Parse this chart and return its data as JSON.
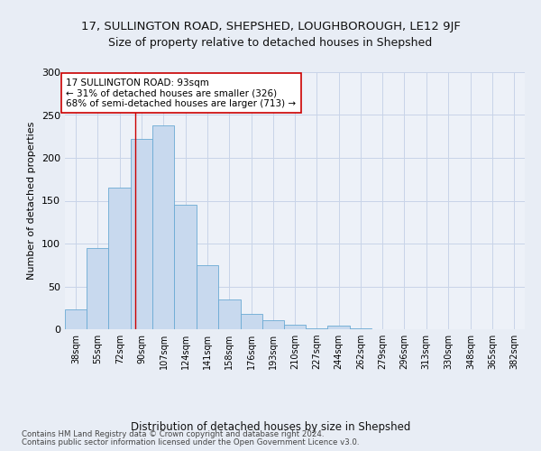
{
  "title": "17, SULLINGTON ROAD, SHEPSHED, LOUGHBOROUGH, LE12 9JF",
  "subtitle": "Size of property relative to detached houses in Shepshed",
  "xlabel": "Distribution of detached houses by size in Shepshed",
  "ylabel": "Number of detached properties",
  "footer_line1": "Contains HM Land Registry data © Crown copyright and database right 2024.",
  "footer_line2": "Contains public sector information licensed under the Open Government Licence v3.0.",
  "bar_labels": [
    "38sqm",
    "55sqm",
    "72sqm",
    "90sqm",
    "107sqm",
    "124sqm",
    "141sqm",
    "158sqm",
    "176sqm",
    "193sqm",
    "210sqm",
    "227sqm",
    "244sqm",
    "262sqm",
    "279sqm",
    "296sqm",
    "313sqm",
    "330sqm",
    "348sqm",
    "365sqm",
    "382sqm"
  ],
  "bar_heights": [
    23,
    95,
    165,
    222,
    238,
    145,
    75,
    35,
    18,
    11,
    5,
    1,
    4,
    1,
    0,
    0,
    0,
    0,
    0,
    0,
    0
  ],
  "bin_edges": [
    38,
    55,
    72,
    90,
    107,
    124,
    141,
    158,
    176,
    193,
    210,
    227,
    244,
    262,
    279,
    296,
    313,
    330,
    348,
    365,
    382,
    399
  ],
  "bar_color": "#c8d9ee",
  "bar_edge_color": "#6aaad4",
  "property_line_x": 93,
  "property_line_color": "#cc0000",
  "annotation_text": "17 SULLINGTON ROAD: 93sqm\n← 31% of detached houses are smaller (326)\n68% of semi-detached houses are larger (713) →",
  "annotation_box_color": "#ffffff",
  "annotation_box_edge_color": "#cc0000",
  "ylim": [
    0,
    300
  ],
  "yticks": [
    0,
    50,
    100,
    150,
    200,
    250,
    300
  ],
  "grid_color": "#c8d4e8",
  "background_color": "#e8edf5",
  "axes_background": "#edf1f8",
  "title_fontsize": 9.5,
  "subtitle_fontsize": 9
}
